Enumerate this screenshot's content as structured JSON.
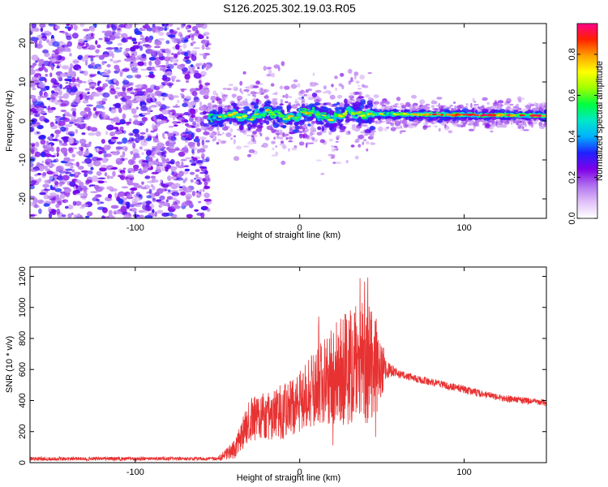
{
  "title": "S126.2025.302.19.03.R05",
  "chart_data": [
    {
      "type": "heatmap",
      "name": "spectrogram",
      "xlabel": "Height of straight line (km)",
      "ylabel": "Frequency (Hz)",
      "xlim": [
        -164,
        150
      ],
      "ylim": [
        -25,
        25
      ],
      "xticks": [
        -100,
        0,
        100
      ],
      "xtick_labels": [
        "-100",
        "0",
        "100"
      ],
      "yticks": [
        20,
        10,
        0,
        -10,
        -20
      ],
      "ytick_labels": [
        "20",
        "10",
        "0",
        "-10",
        "-20"
      ],
      "colorbar": {
        "label": "Normalized spectral amplitude",
        "range": [
          0,
          0.95
        ],
        "ticks": [
          0,
          0.2,
          0.4,
          0.6,
          0.8
        ],
        "tick_labels": [
          "0.0",
          "0.2",
          "0.4",
          "0.6",
          "0.8"
        ],
        "colors": [
          "#ffffff",
          "#e0c0f8",
          "#b070ee",
          "#7f00e8",
          "#2020ff",
          "#00b0ff",
          "#00e8c8",
          "#00ff40",
          "#a0ff00",
          "#ffff00",
          "#ffa000",
          "#ff2000",
          "#ff0090"
        ]
      },
      "regions": [
        {
          "desc": "noise",
          "x_range": [
            -164,
            -55
          ],
          "freq_range": [
            -25,
            25
          ]
        },
        {
          "desc": "signal",
          "x_range": [
            -55,
            150
          ],
          "freq_center_approx": 1.5
        }
      ]
    },
    {
      "type": "line",
      "name": "snr",
      "xlabel": "Height of straight line (km)",
      "ylabel": "SNR (10 * v/v)",
      "xlim": [
        -164,
        150
      ],
      "ylim": [
        0,
        1260
      ],
      "xticks": [
        -100,
        0,
        100
      ],
      "xtick_labels": [
        "-100",
        "0",
        "100"
      ],
      "yticks": [
        0,
        200,
        400,
        600,
        800,
        1000,
        1200
      ],
      "ytick_labels": [
        "0",
        "200",
        "400",
        "600",
        "800",
        "1000",
        "1200"
      ],
      "color": "#e83232",
      "envelope": [
        {
          "x": -164,
          "mean": 25,
          "amp": 12
        },
        {
          "x": -50,
          "mean": 25,
          "amp": 12
        },
        {
          "x": -40,
          "mean": 80,
          "amp": 60
        },
        {
          "x": -30,
          "mean": 280,
          "amp": 140
        },
        {
          "x": -10,
          "mean": 330,
          "amp": 180
        },
        {
          "x": 0,
          "mean": 400,
          "amp": 200
        },
        {
          "x": 10,
          "mean": 480,
          "amp": 260
        },
        {
          "x": 20,
          "mean": 560,
          "amp": 320
        },
        {
          "x": 30,
          "mean": 610,
          "amp": 380
        },
        {
          "x": 40,
          "mean": 640,
          "amp": 400
        },
        {
          "x": 46,
          "mean": 620,
          "amp": 330
        },
        {
          "x": 53,
          "mean": 600,
          "amp": 60
        },
        {
          "x": 60,
          "mean": 570,
          "amp": 25
        },
        {
          "x": 80,
          "mean": 520,
          "amp": 25
        },
        {
          "x": 100,
          "mean": 470,
          "amp": 25
        },
        {
          "x": 120,
          "mean": 420,
          "amp": 22
        },
        {
          "x": 150,
          "mean": 385,
          "amp": 22
        }
      ]
    }
  ]
}
